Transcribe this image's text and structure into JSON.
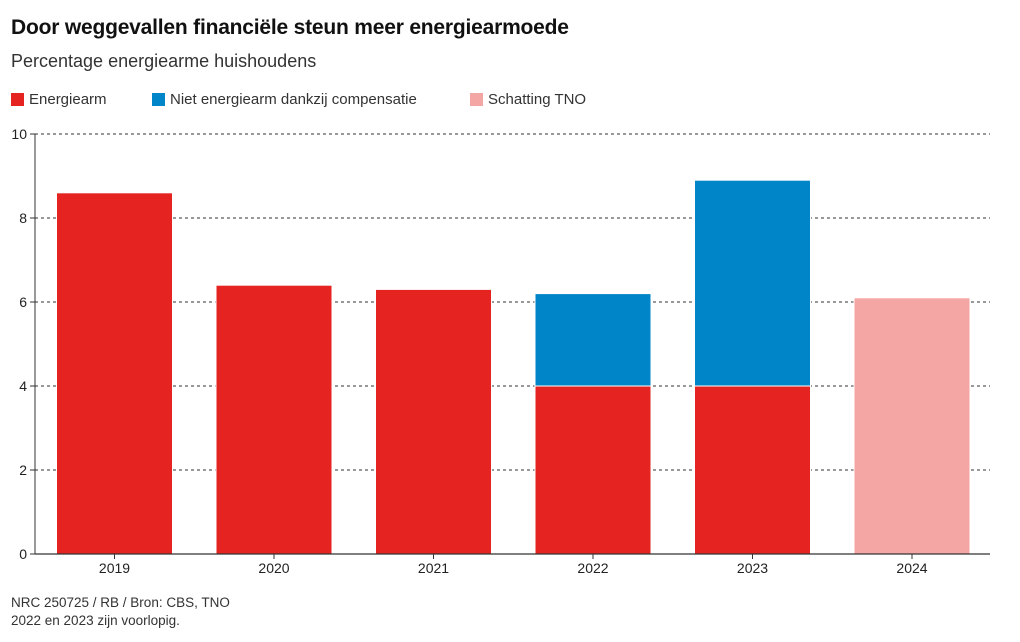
{
  "chart_data": {
    "type": "bar",
    "stacked": true,
    "title": "Door weggevallen financiële steun meer energiearmoede",
    "subtitle": "Percentage energiearme huishoudens",
    "categories": [
      "2019",
      "2020",
      "2021",
      "2022",
      "2023",
      "2024"
    ],
    "series": [
      {
        "name": "Energiearm",
        "color": "#e52421",
        "values": [
          8.6,
          6.4,
          6.3,
          4.0,
          4.0,
          null
        ]
      },
      {
        "name": "Niet energiearm dankzij compensatie",
        "color": "#0085c8",
        "values": [
          null,
          null,
          null,
          2.2,
          4.9,
          null
        ]
      },
      {
        "name": "Schatting TNO",
        "color": "#f4a6a4",
        "values": [
          null,
          null,
          null,
          null,
          null,
          6.1
        ]
      }
    ],
    "yticks": [
      "0",
      "2",
      "4",
      "6",
      "8",
      "10"
    ],
    "ylim": [
      0,
      10
    ],
    "grid": true,
    "legend_position": "top-left"
  },
  "footer": {
    "source": "NRC 250725 / RB / Bron: CBS, TNO",
    "note": "2022 en 2023 zijn voorlopig."
  }
}
